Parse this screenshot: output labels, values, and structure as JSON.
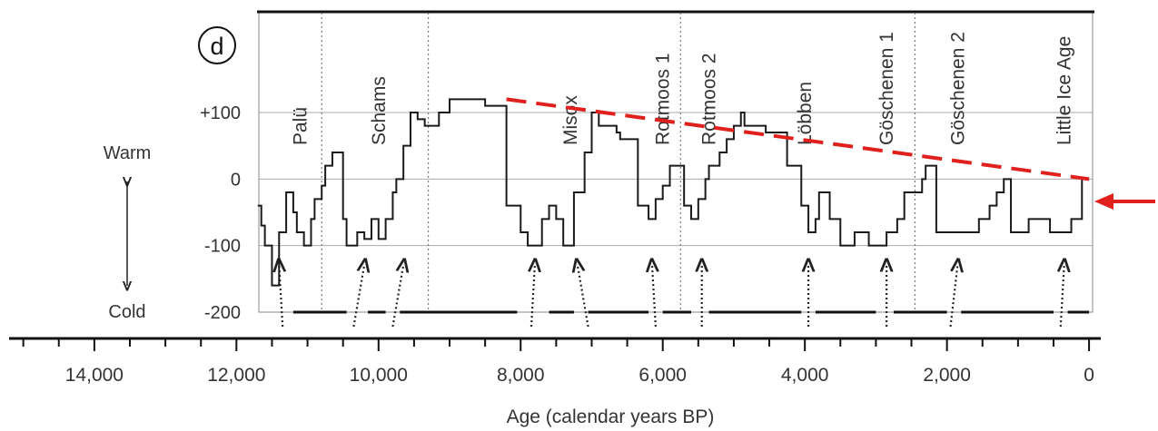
{
  "chart_data": {
    "type": "line",
    "panel_label": "d",
    "xlabel": "Age (calendar years BP)",
    "xlim": [
      15200,
      -50
    ],
    "x_ticks": [
      {
        "value": 14000,
        "label": "14,000"
      },
      {
        "value": 12000,
        "label": "12,000"
      },
      {
        "value": 10000,
        "label": "10,000"
      },
      {
        "value": 8000,
        "label": "8,000"
      },
      {
        "value": 6000,
        "label": "6,000"
      },
      {
        "value": 4000,
        "label": "4,000"
      },
      {
        "value": 2000,
        "label": "2,000"
      },
      {
        "value": 0,
        "label": "0"
      }
    ],
    "ylim": [
      -200,
      250
    ],
    "y_ticks": [
      {
        "value": 100,
        "label": "+100"
      },
      {
        "value": 0,
        "label": "0"
      },
      {
        "value": -100,
        "label": "-100"
      },
      {
        "value": -200,
        "label": "-200"
      }
    ],
    "y_side_labels": {
      "warm": "Warm",
      "cold": "Cold"
    },
    "series": [
      {
        "type": "step",
        "color": "#1a1a1a",
        "x": [
          11700,
          11650,
          11600,
          11500,
          11400,
          11300,
          11200,
          11150,
          11050,
          10950,
          10900,
          10800,
          10750,
          10650,
          10500,
          10450,
          10300,
          10200,
          10100,
          10000,
          9900,
          9800,
          9750,
          9650,
          9550,
          9450,
          9350,
          9150,
          9000,
          8800,
          8500,
          8200,
          8000,
          7900,
          7700,
          7600,
          7500,
          7400,
          7250,
          7100,
          7000,
          6900,
          6800,
          6650,
          6600,
          6350,
          6200,
          6100,
          6000,
          5900,
          5850,
          5700,
          5600,
          5500,
          5400,
          5350,
          5200,
          5100,
          5000,
          4900,
          4850,
          4700,
          4550,
          4250,
          4050,
          3950,
          3850,
          3800,
          3650,
          3500,
          3300,
          3100,
          2850,
          2700,
          2600,
          2350,
          2300,
          2150,
          2100,
          2000,
          1900,
          1800,
          1550,
          1400,
          1300,
          1200,
          1100,
          1050,
          850,
          550,
          450,
          250,
          100,
          0
        ],
        "y": [
          -40,
          -70,
          -100,
          -160,
          -80,
          -20,
          -50,
          -80,
          -100,
          -60,
          -30,
          -10,
          20,
          40,
          -60,
          -100,
          -80,
          -90,
          -60,
          -90,
          -60,
          -20,
          0,
          50,
          100,
          90,
          80,
          100,
          120,
          120,
          110,
          -40,
          -80,
          -100,
          -60,
          -40,
          -60,
          -100,
          -20,
          40,
          100,
          80,
          80,
          70,
          60,
          -40,
          -60,
          -30,
          -10,
          20,
          20,
          -40,
          -60,
          -30,
          0,
          20,
          40,
          60,
          80,
          100,
          80,
          80,
          70,
          20,
          -40,
          -80,
          -60,
          -20,
          -60,
          -100,
          -80,
          -100,
          -80,
          -60,
          -20,
          0,
          20,
          -80,
          -80,
          -80,
          -80,
          -80,
          -60,
          -40,
          -20,
          0,
          -80,
          -80,
          -60,
          -80,
          -80,
          -60,
          0,
          0
        ]
      }
    ],
    "trend_line": {
      "x": [
        8200,
        0
      ],
      "y": [
        120,
        0
      ],
      "style": "dashed",
      "color": "#e0201c"
    },
    "period_labels": [
      {
        "x": 11100,
        "label": "Palü"
      },
      {
        "x": 10000,
        "label": "Schams"
      },
      {
        "x": 7300,
        "label": "Misox"
      },
      {
        "x": 6000,
        "label": "Rotmoos 1"
      },
      {
        "x": 5350,
        "label": "Rotmoos 2"
      },
      {
        "x": 4000,
        "label": "Löbben"
      },
      {
        "x": 2850,
        "label": "Göschenen 1"
      },
      {
        "x": 1850,
        "label": "Göschenen 2"
      },
      {
        "x": 350,
        "label": "Little Ice Age"
      }
    ],
    "dotted_dividers": [
      10800,
      9300,
      5750,
      2450
    ],
    "cold_event_arrows": [
      {
        "from": 11350,
        "to": 11400
      },
      {
        "from": 10350,
        "to": 10200
      },
      {
        "from": 9800,
        "to": 9650
      },
      {
        "from": 7850,
        "to": 7800
      },
      {
        "from": 7050,
        "to": 7200
      },
      {
        "from": 6100,
        "to": 6150
      },
      {
        "from": 5450,
        "to": 5450
      },
      {
        "from": 3950,
        "to": 3950
      },
      {
        "from": 2850,
        "to": 2850
      },
      {
        "from": 1950,
        "to": 1850
      },
      {
        "from": 400,
        "to": 350
      }
    ],
    "base_dash_segments": [
      [
        11200,
        10450
      ],
      [
        10150,
        9900
      ],
      [
        9700,
        8050
      ],
      [
        7600,
        7250
      ],
      [
        7050,
        6200
      ],
      [
        6000,
        5600
      ],
      [
        5350,
        4050
      ],
      [
        3850,
        3000
      ],
      [
        2750,
        2000
      ],
      [
        1800,
        500
      ],
      [
        300,
        0
      ]
    ],
    "present_arrow_color": "#e0201c",
    "grid": true
  }
}
